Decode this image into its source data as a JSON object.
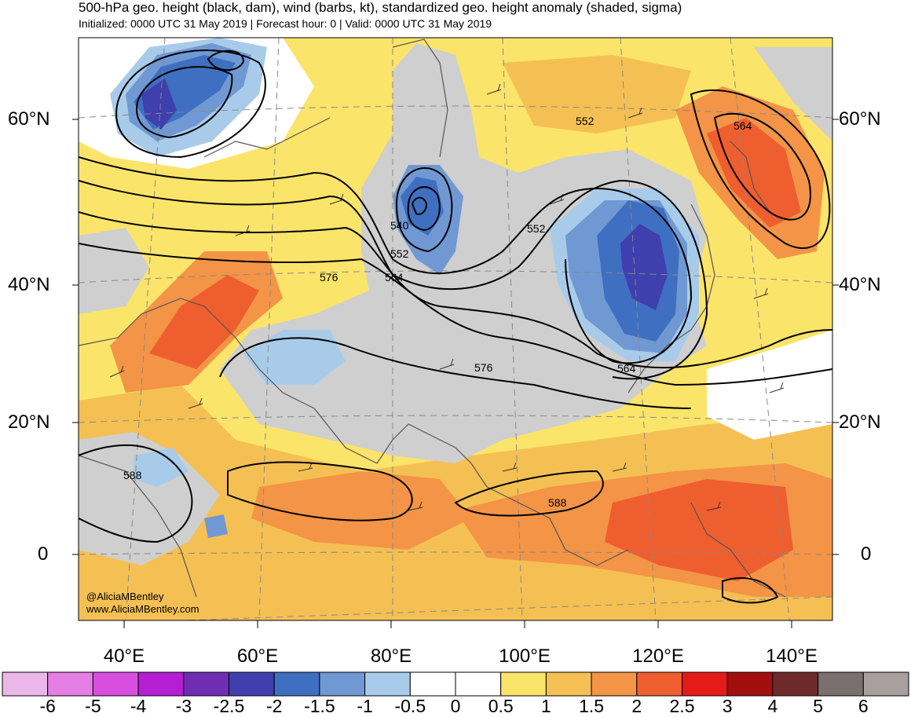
{
  "title": "500-hPa geo. height (black, dam), wind (barbs, kt), standardized geo. height anomaly (shaded, sigma)",
  "subtitle": "Initialized: 0000 UTC 31 May 2019 | Forecast hour: 0 | Valid: 0000 UTC 31 May 2019",
  "credit": {
    "handle": "@AliciaMBentley",
    "site": "www.AliciaMBentley.com"
  },
  "lat_labels": [
    "60°N",
    "40°N",
    "20°N",
    "0"
  ],
  "lon_labels": [
    "40°E",
    "60°E",
    "80°E",
    "100°E",
    "120°E",
    "140°E"
  ],
  "contour_labels": [
    "540",
    "552",
    "564",
    "576",
    "552",
    "552",
    "564",
    "564",
    "576",
    "588",
    "588"
  ],
  "colorbar": {
    "labels": [
      "-6",
      "-5",
      "-4",
      "-3",
      "-2.5",
      "-2",
      "-1.5",
      "-1",
      "-0.5",
      "0",
      "0.5",
      "1",
      "1.5",
      "2",
      "2.5",
      "3",
      "4",
      "5",
      "6"
    ],
    "colors": [
      "#eab8e8",
      "#e57fe3",
      "#d84fe0",
      "#b51ed3",
      "#6e2eb4",
      "#3f3fae",
      "#3f6fc0",
      "#7099d3",
      "#a8cbe9",
      "#ffffff",
      "#ffffff",
      "#fbe46a",
      "#f5c053",
      "#f39446",
      "#ef5e2f",
      "#e41b18",
      "#a20e0e",
      "#6e2a2a",
      "#786f6e",
      "#a89f9e"
    ]
  },
  "anomaly_colors": {
    "gray": "#cfcfcf",
    "light_blue": "#a8cbe9",
    "mid_blue": "#7099d3",
    "blue": "#3f6fc0",
    "deep_blue": "#3f3fae",
    "yellow": "#fbe46a",
    "light_orange": "#f5c053",
    "orange": "#f39446",
    "red_orange": "#ef5e2f"
  }
}
